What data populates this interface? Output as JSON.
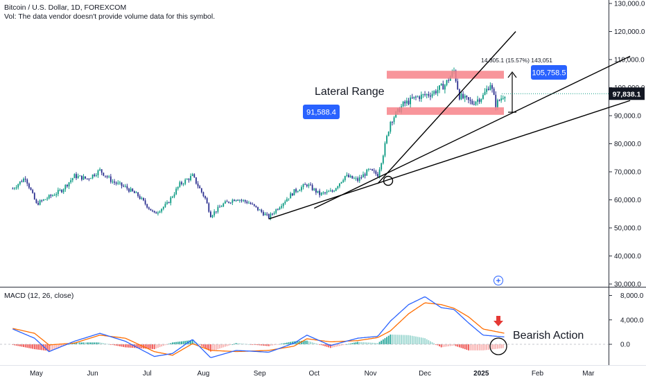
{
  "header": {
    "symbol_line": "Bitcoin / U.S. Dollar, 1D, FOREXCOM",
    "volume_line": "Vol: The data vendor doesn't provide volume data for this symbol."
  },
  "macd": {
    "label": "MACD (12, 26, close)"
  },
  "annotations": {
    "lateral_range": "Lateral Range",
    "bearish_action": "Bearish Action",
    "range_measure": "14,305.1 (15.57%) 143,051",
    "price_tag_high": "105,758.5",
    "price_tag_low": "91,588.4",
    "last_price": "97,838.1"
  },
  "colors": {
    "up": "#089981",
    "down": "#2a2e8f",
    "accent_blue": "#2962ff",
    "range_box": "#f7828a",
    "macd_line": "#2962ff",
    "signal_line": "#ff6d00",
    "hist_pos": "#26a69a",
    "hist_neg": "#ef5350",
    "last_price_bg": "#131722",
    "bearish_arrow": "#e53935"
  },
  "chart_data": [
    {
      "type": "candlestick",
      "title": "Bitcoin / U.S. Dollar, 1D, FOREXCOM",
      "y_axis": {
        "ticks": [
          30000,
          40000,
          50000,
          60000,
          70000,
          80000,
          90000,
          100000,
          110000,
          120000,
          130000
        ],
        "tick_labels": [
          "30,000.0",
          "40,000.0",
          "50,000.0",
          "60,000.0",
          "70,000.0",
          "80,000.0",
          "90,000.0",
          "100,000.0",
          "110,000.0",
          "120,000.0",
          "130,000.0"
        ],
        "ylim": [
          30000,
          130000
        ]
      },
      "x_axis": {
        "tick_labels": [
          "May",
          "Jun",
          "Jul",
          "Aug",
          "Sep",
          "Oct",
          "Nov",
          "Dec",
          "2025",
          "Feb",
          "Mar"
        ]
      },
      "close_path": [
        {
          "x": "2024-04-18",
          "y": 64000
        },
        {
          "x": "2024-04-25",
          "y": 68000
        },
        {
          "x": "2024-05-01",
          "y": 58500
        },
        {
          "x": "2024-05-08",
          "y": 61000
        },
        {
          "x": "2024-05-15",
          "y": 63500
        },
        {
          "x": "2024-05-22",
          "y": 68500
        },
        {
          "x": "2024-05-29",
          "y": 67500
        },
        {
          "x": "2024-06-05",
          "y": 70500
        },
        {
          "x": "2024-06-12",
          "y": 66500
        },
        {
          "x": "2024-06-19",
          "y": 64500
        },
        {
          "x": "2024-06-26",
          "y": 61500
        },
        {
          "x": "2024-07-05",
          "y": 55000
        },
        {
          "x": "2024-07-12",
          "y": 58500
        },
        {
          "x": "2024-07-19",
          "y": 65500
        },
        {
          "x": "2024-07-26",
          "y": 68500
        },
        {
          "x": "2024-08-02",
          "y": 60500
        },
        {
          "x": "2024-08-05",
          "y": 54500
        },
        {
          "x": "2024-08-12",
          "y": 58500
        },
        {
          "x": "2024-08-19",
          "y": 60500
        },
        {
          "x": "2024-08-26",
          "y": 59000
        },
        {
          "x": "2024-09-06",
          "y": 53800
        },
        {
          "x": "2024-09-13",
          "y": 58500
        },
        {
          "x": "2024-09-20",
          "y": 63000
        },
        {
          "x": "2024-09-27",
          "y": 65500
        },
        {
          "x": "2024-10-04",
          "y": 62000
        },
        {
          "x": "2024-10-11",
          "y": 63000
        },
        {
          "x": "2024-10-18",
          "y": 68500
        },
        {
          "x": "2024-10-25",
          "y": 67000
        },
        {
          "x": "2024-10-31",
          "y": 70500
        },
        {
          "x": "2024-11-05",
          "y": 69000
        },
        {
          "x": "2024-11-08",
          "y": 76500
        },
        {
          "x": "2024-11-12",
          "y": 88000
        },
        {
          "x": "2024-11-19",
          "y": 94000
        },
        {
          "x": "2024-11-26",
          "y": 96500
        },
        {
          "x": "2024-12-05",
          "y": 98000
        },
        {
          "x": "2024-12-12",
          "y": 101000
        },
        {
          "x": "2024-12-17",
          "y": 106000
        },
        {
          "x": "2024-12-20",
          "y": 97000
        },
        {
          "x": "2024-12-27",
          "y": 94500
        },
        {
          "x": "2025-01-02",
          "y": 97000
        },
        {
          "x": "2025-01-06",
          "y": 101500
        },
        {
          "x": "2025-01-09",
          "y": 94000
        },
        {
          "x": "2025-01-14",
          "y": 97838
        }
      ],
      "horizontal_zones": [
        {
          "name": "upper-range",
          "y_from": 103200,
          "y_to": 106000
        },
        {
          "name": "lower-range",
          "y_from": 90300,
          "y_to": 93000
        }
      ],
      "trendlines": [
        {
          "from": {
            "x": "2024-09-06",
            "y": 53200
          },
          "to": {
            "x": "2025-03-24",
            "y": 95400
          }
        },
        {
          "from": {
            "x": "2024-10-01",
            "y": 57000
          },
          "to": {
            "x": "2025-03-24",
            "y": 111200
          }
        },
        {
          "from": {
            "x": "2024-11-05",
            "y": 65800
          },
          "to": {
            "x": "2025-01-20",
            "y": 120000
          }
        }
      ],
      "last_price": 97838.1
    },
    {
      "type": "line",
      "title": "MACD (12, 26, close)",
      "y_axis": {
        "ticks": [
          0,
          4000,
          8000
        ],
        "tick_labels": [
          "0.0",
          "4,000.0",
          "8,000.0"
        ]
      },
      "series": [
        {
          "key": "macd",
          "values": [
            {
              "x": "2024-04-18",
              "y": 2500
            },
            {
              "x": "2024-04-30",
              "y": 1000
            },
            {
              "x": "2024-05-08",
              "y": -1200
            },
            {
              "x": "2024-05-22",
              "y": 500
            },
            {
              "x": "2024-06-05",
              "y": 1800
            },
            {
              "x": "2024-06-19",
              "y": 500
            },
            {
              "x": "2024-07-05",
              "y": -2000
            },
            {
              "x": "2024-07-15",
              "y": -1500
            },
            {
              "x": "2024-07-26",
              "y": 800
            },
            {
              "x": "2024-08-05",
              "y": -2200
            },
            {
              "x": "2024-08-19",
              "y": -1000
            },
            {
              "x": "2024-09-06",
              "y": -1300
            },
            {
              "x": "2024-09-20",
              "y": 200
            },
            {
              "x": "2024-09-27",
              "y": 1500
            },
            {
              "x": "2024-10-10",
              "y": -200
            },
            {
              "x": "2024-10-25",
              "y": 1000
            },
            {
              "x": "2024-11-05",
              "y": 1300
            },
            {
              "x": "2024-11-12",
              "y": 3800
            },
            {
              "x": "2024-11-22",
              "y": 6500
            },
            {
              "x": "2024-12-01",
              "y": 7800
            },
            {
              "x": "2024-12-10",
              "y": 6000
            },
            {
              "x": "2024-12-17",
              "y": 5700
            },
            {
              "x": "2024-12-25",
              "y": 3500
            },
            {
              "x": "2025-01-02",
              "y": 1500
            },
            {
              "x": "2025-01-14",
              "y": 1200
            }
          ]
        },
        {
          "key": "signal",
          "values": [
            {
              "x": "2024-04-18",
              "y": 2600
            },
            {
              "x": "2024-04-30",
              "y": 1800
            },
            {
              "x": "2024-05-08",
              "y": -100
            },
            {
              "x": "2024-05-22",
              "y": 200
            },
            {
              "x": "2024-06-05",
              "y": 1500
            },
            {
              "x": "2024-06-19",
              "y": 1000
            },
            {
              "x": "2024-07-05",
              "y": -1200
            },
            {
              "x": "2024-07-15",
              "y": -1800
            },
            {
              "x": "2024-07-26",
              "y": 100
            },
            {
              "x": "2024-08-05",
              "y": -1000
            },
            {
              "x": "2024-08-19",
              "y": -1200
            },
            {
              "x": "2024-09-06",
              "y": -1000
            },
            {
              "x": "2024-09-20",
              "y": -300
            },
            {
              "x": "2024-09-27",
              "y": 900
            },
            {
              "x": "2024-10-10",
              "y": 400
            },
            {
              "x": "2024-10-25",
              "y": 600
            },
            {
              "x": "2024-11-05",
              "y": 1100
            },
            {
              "x": "2024-11-12",
              "y": 2200
            },
            {
              "x": "2024-11-22",
              "y": 5000
            },
            {
              "x": "2024-12-01",
              "y": 6800
            },
            {
              "x": "2024-12-10",
              "y": 6500
            },
            {
              "x": "2024-12-17",
              "y": 5900
            },
            {
              "x": "2024-12-25",
              "y": 4500
            },
            {
              "x": "2025-01-02",
              "y": 2500
            },
            {
              "x": "2025-01-14",
              "y": 1800
            }
          ]
        }
      ]
    }
  ]
}
